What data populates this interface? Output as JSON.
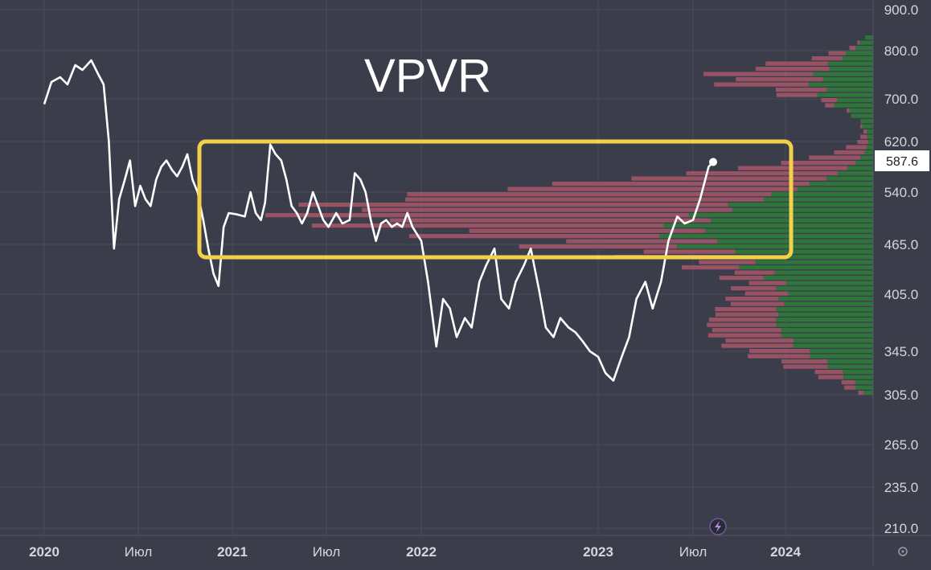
{
  "chart_data": {
    "type": "line",
    "title": "VPVR",
    "price_labels": [
      "900.0",
      "800.0",
      "700.0",
      "620.0",
      "540.0",
      "465.0",
      "405.0",
      "345.0",
      "305.0",
      "265.0",
      "235.0",
      "210.0"
    ],
    "time_labels": [
      "2020",
      "Июл",
      "2021",
      "Июл",
      "2022",
      "2023",
      "Июл",
      "2024"
    ],
    "current_price": 587.6,
    "series": [
      {
        "values": [
          [
            "2020-01-01",
            690
          ],
          [
            "2020-01-15",
            735
          ],
          [
            "2020-02-01",
            745
          ],
          [
            "2020-02-15",
            730
          ],
          [
            "2020-03-01",
            770
          ],
          [
            "2020-03-15",
            760
          ],
          [
            "2020-04-01",
            780
          ],
          [
            "2020-04-15",
            750
          ],
          [
            "2020-04-25",
            730
          ],
          [
            "2020-05-05",
            620
          ],
          [
            "2020-05-15",
            460
          ],
          [
            "2020-05-25",
            530
          ],
          [
            "2020-06-05",
            560
          ],
          [
            "2020-06-15",
            590
          ],
          [
            "2020-06-25",
            520
          ],
          [
            "2020-07-05",
            550
          ],
          [
            "2020-07-15",
            530
          ],
          [
            "2020-07-25",
            520
          ],
          [
            "2020-08-05",
            560
          ],
          [
            "2020-08-15",
            580
          ],
          [
            "2020-08-25",
            590
          ],
          [
            "2020-09-05",
            575
          ],
          [
            "2020-09-15",
            565
          ],
          [
            "2020-09-25",
            580
          ],
          [
            "2020-10-05",
            600
          ],
          [
            "2020-10-15",
            560
          ],
          [
            "2020-10-25",
            540
          ],
          [
            "2020-11-05",
            500
          ],
          [
            "2020-11-15",
            460
          ],
          [
            "2020-11-25",
            430
          ],
          [
            "2020-12-05",
            415
          ],
          [
            "2020-12-15",
            490
          ],
          [
            "2020-12-25",
            510
          ],
          [
            "2021-01-10",
            508
          ],
          [
            "2021-01-25",
            505
          ],
          [
            "2021-02-05",
            540
          ],
          [
            "2021-02-15",
            510
          ],
          [
            "2021-02-25",
            500
          ],
          [
            "2021-03-05",
            525
          ],
          [
            "2021-03-15",
            615
          ],
          [
            "2021-03-25",
            600
          ],
          [
            "2021-04-05",
            590
          ],
          [
            "2021-04-15",
            560
          ],
          [
            "2021-04-25",
            520
          ],
          [
            "2021-05-05",
            510
          ],
          [
            "2021-05-15",
            495
          ],
          [
            "2021-05-25",
            510
          ],
          [
            "2021-06-05",
            540
          ],
          [
            "2021-06-15",
            520
          ],
          [
            "2021-06-25",
            500
          ],
          [
            "2021-07-05",
            490
          ],
          [
            "2021-07-20",
            510
          ],
          [
            "2021-08-01",
            495
          ],
          [
            "2021-08-15",
            500
          ],
          [
            "2021-08-25",
            570
          ],
          [
            "2021-09-05",
            560
          ],
          [
            "2021-09-15",
            540
          ],
          [
            "2021-09-25",
            500
          ],
          [
            "2021-10-05",
            470
          ],
          [
            "2021-10-15",
            495
          ],
          [
            "2021-10-25",
            500
          ],
          [
            "2021-11-05",
            490
          ],
          [
            "2021-11-15",
            495
          ],
          [
            "2021-11-25",
            490
          ],
          [
            "2021-12-05",
            510
          ],
          [
            "2021-12-15",
            490
          ],
          [
            "2022-01-01",
            470
          ],
          [
            "2022-01-15",
            420
          ],
          [
            "2022-02-01",
            350
          ],
          [
            "2022-02-15",
            400
          ],
          [
            "2022-03-01",
            390
          ],
          [
            "2022-03-15",
            360
          ],
          [
            "2022-04-01",
            380
          ],
          [
            "2022-04-15",
            370
          ],
          [
            "2022-05-01",
            420
          ],
          [
            "2022-05-15",
            440
          ],
          [
            "2022-06-01",
            460
          ],
          [
            "2022-06-15",
            400
          ],
          [
            "2022-07-01",
            390
          ],
          [
            "2022-07-15",
            420
          ],
          [
            "2022-08-01",
            440
          ],
          [
            "2022-08-15",
            460
          ],
          [
            "2022-09-01",
            410
          ],
          [
            "2022-09-15",
            370
          ],
          [
            "2022-10-01",
            360
          ],
          [
            "2022-10-15",
            380
          ],
          [
            "2022-11-01",
            370
          ],
          [
            "2022-11-15",
            365
          ],
          [
            "2022-12-01",
            355
          ],
          [
            "2022-12-15",
            345
          ],
          [
            "2023-01-01",
            340
          ],
          [
            "2023-01-15",
            325
          ],
          [
            "2023-01-30",
            318
          ],
          [
            "2023-02-15",
            340
          ],
          [
            "2023-03-01",
            360
          ],
          [
            "2023-03-15",
            400
          ],
          [
            "2023-04-01",
            420
          ],
          [
            "2023-04-15",
            390
          ],
          [
            "2023-05-01",
            420
          ],
          [
            "2023-05-15",
            470
          ],
          [
            "2023-06-01",
            505
          ],
          [
            "2023-06-15",
            495
          ],
          [
            "2023-07-01",
            500
          ],
          [
            "2023-07-15",
            530
          ],
          [
            "2023-08-01",
            580
          ],
          [
            "2023-08-10",
            587.6
          ]
        ]
      }
    ]
  }
}
